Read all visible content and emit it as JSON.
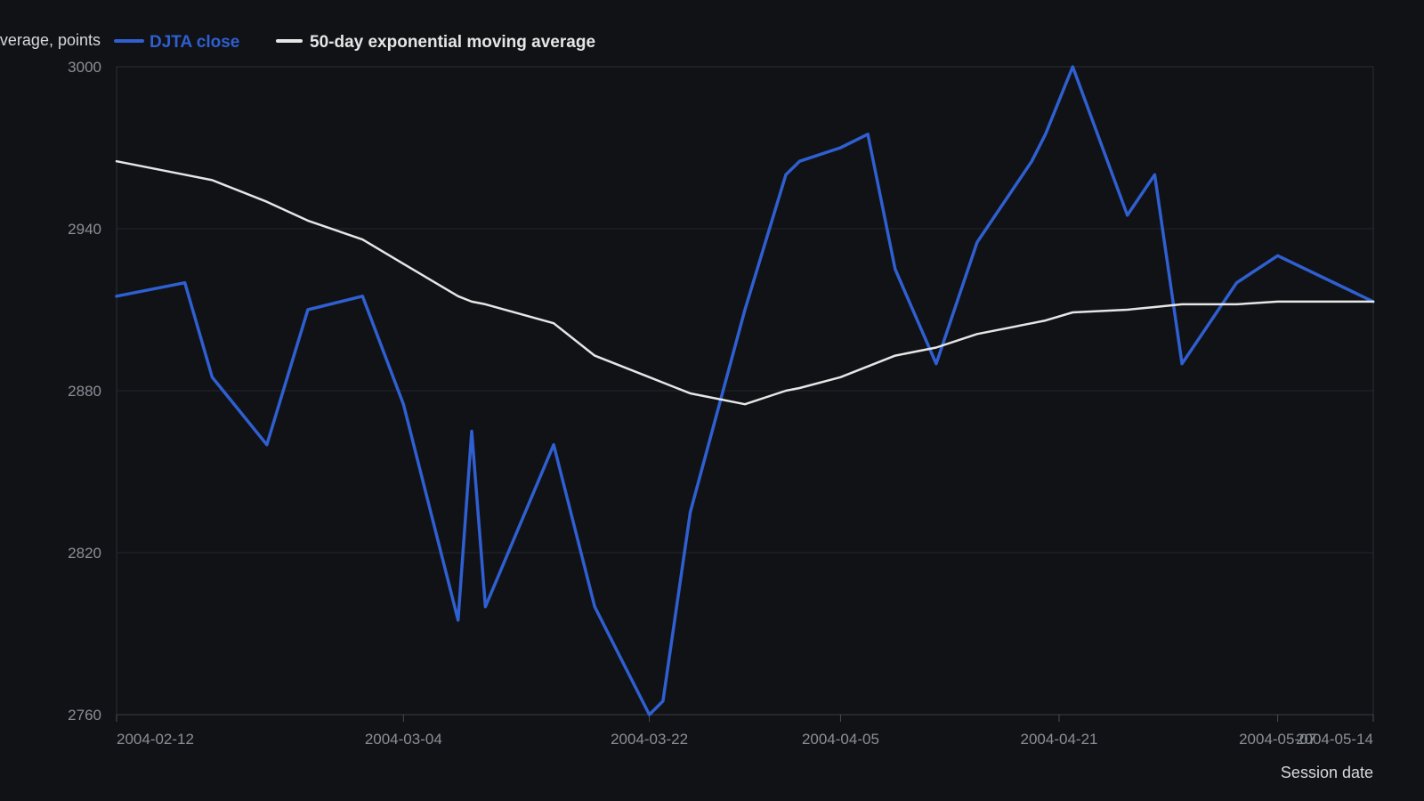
{
  "chart_data": {
    "type": "line",
    "ylabel": "Average, points",
    "xlabel": "Session date",
    "ylim": [
      2760,
      3000
    ],
    "yticks": [
      2760,
      2820,
      2880,
      2940,
      3000
    ],
    "xticks": [
      "2004-02-12",
      "2004-03-04",
      "2004-03-22",
      "2004-04-05",
      "2004-04-21",
      "2004-05-07",
      "2004-05-14"
    ],
    "grid": true,
    "legend_position": "top-left",
    "x": [
      "2004-02-12",
      "2004-02-17",
      "2004-02-19",
      "2004-02-23",
      "2004-02-26",
      "2004-03-01",
      "2004-03-04",
      "2004-03-08",
      "2004-03-09",
      "2004-03-10",
      "2004-03-15",
      "2004-03-18",
      "2004-03-22",
      "2004-03-23",
      "2004-03-25",
      "2004-03-29",
      "2004-04-01",
      "2004-04-02",
      "2004-04-05",
      "2004-04-07",
      "2004-04-09",
      "2004-04-12",
      "2004-04-15",
      "2004-04-19",
      "2004-04-20",
      "2004-04-22",
      "2004-04-26",
      "2004-04-28",
      "2004-04-30",
      "2004-05-04",
      "2004-05-07",
      "2004-05-14"
    ],
    "series": [
      {
        "name": "DJTA close",
        "color": "#2f5fd0",
        "values": [
          2915,
          2920,
          2885,
          2860,
          2910,
          2915,
          2875,
          2795,
          2865,
          2800,
          2860,
          2800,
          2760,
          2765,
          2835,
          2910,
          2960,
          2965,
          2970,
          2975,
          2925,
          2890,
          2935,
          2965,
          2975,
          3000,
          2945,
          2960,
          2890,
          2920,
          2930,
          2913
        ]
      },
      {
        "name": "50-day exponential moving average",
        "color": "#e6e6e6",
        "values": [
          2965,
          2960,
          2958,
          2950,
          2943,
          2936,
          2927,
          2915,
          2913,
          2912,
          2905,
          2893,
          2885,
          2883,
          2879,
          2875,
          2880,
          2881,
          2885,
          2889,
          2893,
          2896,
          2901,
          2905,
          2906,
          2909,
          2910,
          2911,
          2912,
          2912,
          2913,
          2913
        ]
      }
    ]
  }
}
